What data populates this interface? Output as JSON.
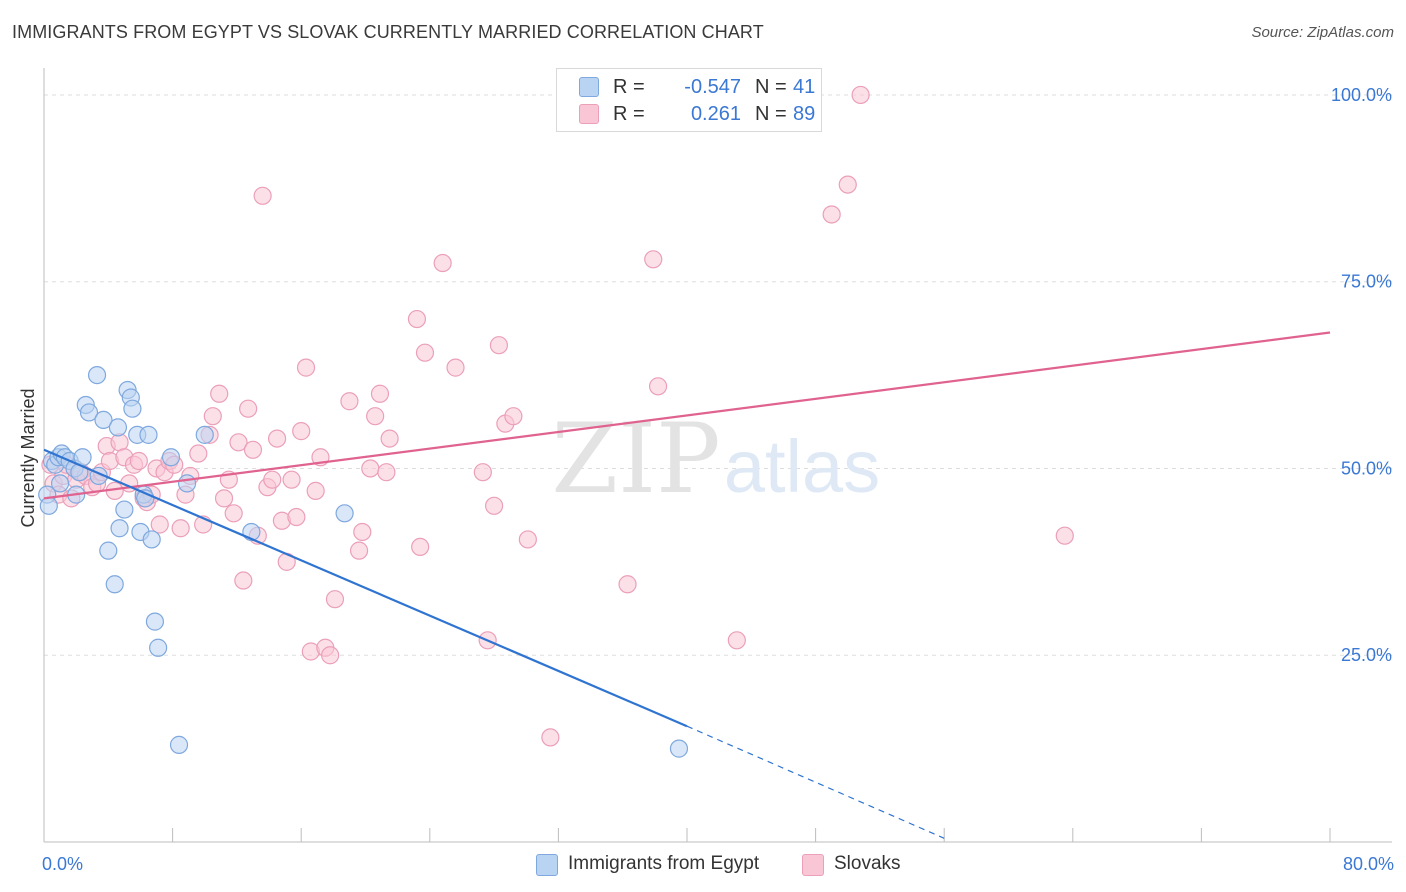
{
  "title": "IMMIGRANTS FROM EGYPT VS SLOVAK CURRENTLY MARRIED CORRELATION CHART",
  "source": "Source: ZipAtlas.com",
  "watermark": {
    "zip": "ZIP",
    "atlas": "atlas"
  },
  "legend_top": [
    {
      "r_label": "R =",
      "r_value": "-0.547",
      "n_label": "N =",
      "n_value": "41"
    },
    {
      "r_label": "R =",
      "r_value": "0.261",
      "n_label": "N =",
      "n_value": "89"
    }
  ],
  "colors": {
    "egypt_fill": "#b9d3f3",
    "egypt_stroke": "#7fa8de",
    "egypt_line": "#2f74d0",
    "slovak_fill": "#f9c6d6",
    "slovak_stroke": "#eb9fb9",
    "slovak_line": "#e0628f",
    "tick_label": "#3a78d4",
    "grid": "#dddddd"
  },
  "chart_data": {
    "type": "scatter",
    "title": "IMMIGRANTS FROM EGYPT VS SLOVAK CURRENTLY MARRIED CORRELATION CHART",
    "xlabel": "",
    "ylabel": "Currently Married",
    "xlim": [
      0,
      80
    ],
    "ylim": [
      0,
      102
    ],
    "x_tick_labels": [
      "0.0%",
      "80.0%"
    ],
    "y_ticks": [
      25,
      50,
      75,
      100
    ],
    "y_tick_labels": [
      "25.0%",
      "50.0%",
      "75.0%",
      "100.0%"
    ],
    "grid": true,
    "legend_placement": "bottom",
    "series": [
      {
        "name": "Immigrants from Egypt",
        "r": -0.547,
        "n": 41,
        "trend": {
          "x": [
            0,
            40
          ],
          "y": [
            52.5,
            15.5
          ],
          "dashed_to": [
            56,
            0.5
          ]
        },
        "points": [
          [
            0.2,
            46.5
          ],
          [
            0.3,
            45.0
          ],
          [
            0.5,
            51.0
          ],
          [
            0.7,
            50.5
          ],
          [
            0.9,
            51.5
          ],
          [
            1.0,
            48.0
          ],
          [
            1.1,
            52.0
          ],
          [
            1.3,
            51.5
          ],
          [
            1.6,
            51.0
          ],
          [
            1.9,
            50.0
          ],
          [
            2.0,
            46.5
          ],
          [
            2.2,
            49.5
          ],
          [
            2.4,
            51.5
          ],
          [
            2.6,
            58.5
          ],
          [
            2.8,
            57.5
          ],
          [
            3.3,
            62.5
          ],
          [
            3.4,
            49.0
          ],
          [
            3.7,
            56.5
          ],
          [
            4.0,
            39.0
          ],
          [
            4.4,
            34.5
          ],
          [
            4.6,
            55.5
          ],
          [
            4.7,
            42.0
          ],
          [
            5.0,
            44.5
          ],
          [
            5.2,
            60.5
          ],
          [
            5.4,
            59.5
          ],
          [
            5.5,
            58.0
          ],
          [
            5.8,
            54.5
          ],
          [
            6.0,
            41.5
          ],
          [
            6.2,
            46.5
          ],
          [
            6.3,
            46.0
          ],
          [
            6.5,
            54.5
          ],
          [
            6.7,
            40.5
          ],
          [
            6.9,
            29.5
          ],
          [
            7.1,
            26.0
          ],
          [
            7.9,
            51.5
          ],
          [
            8.4,
            13.0
          ],
          [
            8.9,
            48.0
          ],
          [
            10.0,
            54.5
          ],
          [
            12.9,
            41.5
          ],
          [
            18.7,
            44.0
          ],
          [
            39.5,
            12.5
          ]
        ]
      },
      {
        "name": "Slovaks",
        "r": 0.261,
        "n": 89,
        "trend": {
          "x": [
            0,
            80
          ],
          "y": [
            46,
            68.2
          ]
        },
        "points": [
          [
            0.4,
            50.5
          ],
          [
            0.6,
            48.0
          ],
          [
            0.9,
            46.5
          ],
          [
            1.2,
            49.0
          ],
          [
            1.4,
            50.5
          ],
          [
            1.7,
            46.0
          ],
          [
            2.0,
            48.5
          ],
          [
            2.3,
            49.5
          ],
          [
            2.6,
            49.0
          ],
          [
            3.0,
            47.5
          ],
          [
            3.3,
            48.0
          ],
          [
            3.6,
            49.5
          ],
          [
            3.9,
            53.0
          ],
          [
            4.1,
            51.0
          ],
          [
            4.4,
            47.0
          ],
          [
            4.7,
            53.5
          ],
          [
            5.0,
            51.5
          ],
          [
            5.3,
            48.0
          ],
          [
            5.6,
            50.5
          ],
          [
            5.9,
            51.0
          ],
          [
            6.2,
            46.0
          ],
          [
            6.4,
            45.5
          ],
          [
            6.7,
            46.5
          ],
          [
            7.0,
            50.0
          ],
          [
            7.2,
            42.5
          ],
          [
            7.5,
            49.5
          ],
          [
            7.8,
            51.0
          ],
          [
            8.1,
            50.5
          ],
          [
            8.5,
            42.0
          ],
          [
            8.8,
            46.5
          ],
          [
            9.1,
            49.0
          ],
          [
            9.6,
            52.0
          ],
          [
            9.9,
            42.5
          ],
          [
            10.3,
            54.5
          ],
          [
            10.5,
            57.0
          ],
          [
            10.9,
            60.0
          ],
          [
            11.2,
            46.0
          ],
          [
            11.5,
            48.5
          ],
          [
            11.8,
            44.0
          ],
          [
            12.1,
            53.5
          ],
          [
            12.4,
            35.0
          ],
          [
            12.7,
            58.0
          ],
          [
            13.0,
            52.5
          ],
          [
            13.3,
            41.0
          ],
          [
            13.6,
            86.5
          ],
          [
            13.9,
            47.5
          ],
          [
            14.2,
            48.5
          ],
          [
            14.5,
            54.0
          ],
          [
            14.8,
            43.0
          ],
          [
            15.1,
            37.5
          ],
          [
            15.4,
            48.5
          ],
          [
            15.7,
            43.5
          ],
          [
            16.0,
            55.0
          ],
          [
            16.3,
            63.5
          ],
          [
            16.6,
            25.5
          ],
          [
            16.9,
            47.0
          ],
          [
            17.2,
            51.5
          ],
          [
            17.5,
            26.0
          ],
          [
            17.8,
            25.0
          ],
          [
            18.1,
            32.5
          ],
          [
            19.0,
            59.0
          ],
          [
            19.6,
            39.0
          ],
          [
            19.8,
            41.5
          ],
          [
            20.3,
            50.0
          ],
          [
            20.6,
            57.0
          ],
          [
            20.9,
            60.0
          ],
          [
            21.3,
            49.5
          ],
          [
            21.5,
            54.0
          ],
          [
            23.2,
            70.0
          ],
          [
            23.4,
            39.5
          ],
          [
            23.7,
            65.5
          ],
          [
            24.8,
            77.5
          ],
          [
            25.6,
            63.5
          ],
          [
            27.3,
            49.5
          ],
          [
            27.6,
            27.0
          ],
          [
            28.0,
            45.0
          ],
          [
            28.3,
            66.5
          ],
          [
            28.7,
            56.0
          ],
          [
            29.2,
            57.0
          ],
          [
            30.1,
            40.5
          ],
          [
            31.5,
            14.0
          ],
          [
            36.3,
            34.5
          ],
          [
            37.9,
            78.0
          ],
          [
            38.2,
            61.0
          ],
          [
            43.1,
            27.0
          ],
          [
            49.0,
            84.0
          ],
          [
            50.0,
            88.0
          ],
          [
            50.8,
            100.0
          ],
          [
            63.5,
            41.0
          ]
        ]
      }
    ]
  }
}
